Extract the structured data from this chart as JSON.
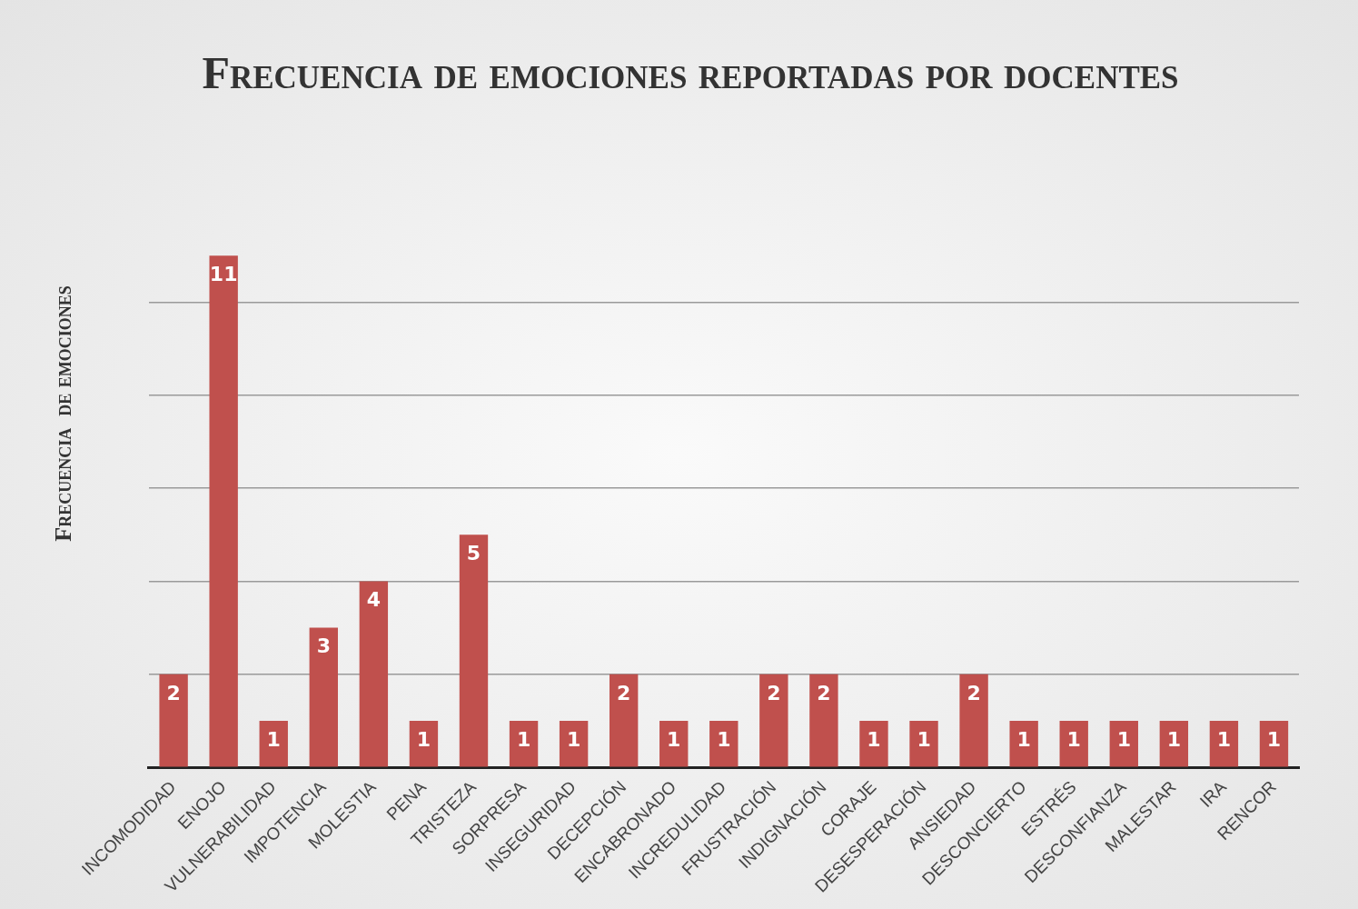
{
  "chart_data": {
    "type": "bar",
    "title": "Frecuencia de emociones reportadas por docentes",
    "ylabel": "Frecuencia  de emociones",
    "categories": [
      "INCOMODIDAD",
      "ENOJO",
      "VULNERABILIDAD",
      "IMPOTENCIA",
      "MOLESTIA",
      "PENA",
      "TRISTEZA",
      "SORPRESA",
      "INSEGURIDAD",
      "DECEPCIÓN",
      "ENCABRONADO",
      "INCREDULIDAD",
      "FRUSTRACIÓN",
      "INDIGNACIÓN",
      "CORAJE",
      "DESESPERACIÓN",
      "ANSIEDAD",
      "DESCONCIERTO",
      "ESTRÉS",
      "DESCONFIANZA",
      "MALESTAR",
      "IRA",
      "RENCOR"
    ],
    "values": [
      2,
      11,
      1,
      3,
      4,
      1,
      5,
      1,
      1,
      2,
      1,
      1,
      2,
      2,
      1,
      1,
      2,
      1,
      1,
      1,
      1,
      1,
      1
    ],
    "color": "#c0504d",
    "yticks": [
      {
        "value": 0,
        "label": null
      },
      {
        "value": 2,
        "label": null
      },
      {
        "value": 4,
        "label": null
      },
      {
        "value": 6,
        "label": null
      },
      {
        "value": 8,
        "label": null
      },
      {
        "value": 10,
        "label": null
      }
    ],
    "tick_labels": "x",
    "grid": "y",
    "data_labels": true
  }
}
